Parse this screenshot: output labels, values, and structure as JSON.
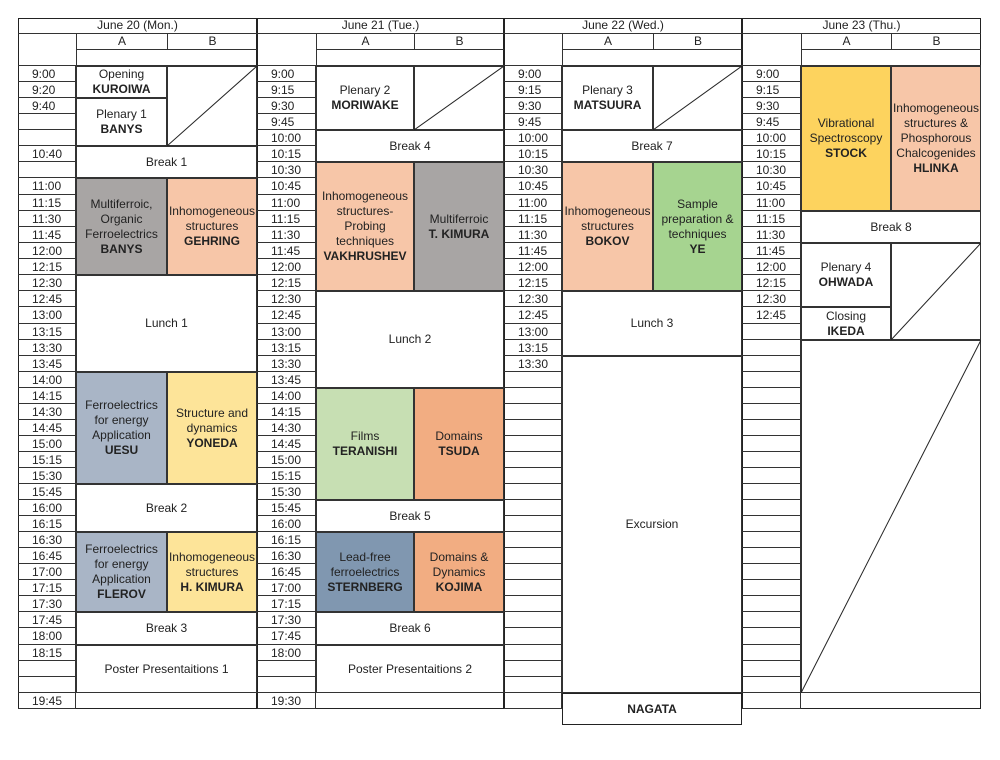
{
  "days": [
    {
      "label": "June 20 (Mon.)",
      "col_a": "A",
      "col_b": "B"
    },
    {
      "label": "June 21 (Tue.)",
      "col_a": "A",
      "col_b": "B"
    },
    {
      "label": "June 22 (Wed.)",
      "col_a": "A",
      "col_b": "B"
    },
    {
      "label": "June 23 (Thu.)",
      "col_a": "A",
      "col_b": "B"
    }
  ],
  "times": {
    "d1": [
      {
        "id": "t0900",
        "text": "9:00"
      },
      {
        "id": "t0920",
        "text": "9:20"
      },
      {
        "id": "t0940",
        "text": "9:40"
      },
      {
        "id": "t1040",
        "text": "10:40"
      },
      {
        "id": "t1100",
        "text": "11:00"
      },
      {
        "id": "t1115",
        "text": "11:15"
      },
      {
        "id": "t1130",
        "text": "11:30"
      },
      {
        "id": "t1145",
        "text": "11:45"
      },
      {
        "id": "t1200",
        "text": "12:00"
      },
      {
        "id": "t1215",
        "text": "12:15"
      },
      {
        "id": "t1230",
        "text": "12:30"
      },
      {
        "id": "t1245",
        "text": "12:45"
      },
      {
        "id": "t1300",
        "text": "13:00"
      },
      {
        "id": "t1315",
        "text": "13:15"
      },
      {
        "id": "t1330",
        "text": "13:30"
      },
      {
        "id": "t1345",
        "text": "13:45"
      },
      {
        "id": "t1400",
        "text": "14:00"
      },
      {
        "id": "t1415",
        "text": "14:15"
      },
      {
        "id": "t1430",
        "text": "14:30"
      },
      {
        "id": "t1445",
        "text": "14:45"
      },
      {
        "id": "t1500",
        "text": "15:00"
      },
      {
        "id": "t1515",
        "text": "15:15"
      },
      {
        "id": "t1530",
        "text": "15:30"
      },
      {
        "id": "t1545",
        "text": "15:45"
      },
      {
        "id": "t1600",
        "text": "16:00"
      },
      {
        "id": "t1615",
        "text": "16:15"
      },
      {
        "id": "t1630",
        "text": "16:30"
      },
      {
        "id": "t1645",
        "text": "16:45"
      },
      {
        "id": "t1700",
        "text": "17:00"
      },
      {
        "id": "t1715",
        "text": "17:15"
      },
      {
        "id": "t1730",
        "text": "17:30"
      },
      {
        "id": "t1745",
        "text": "17:45"
      },
      {
        "id": "t1800",
        "text": "18:00"
      },
      {
        "id": "t1815",
        "text": "18:15"
      },
      {
        "id": "t1945",
        "text": "19:45"
      }
    ],
    "d2": [
      {
        "id": "t0900",
        "text": "9:00"
      },
      {
        "id": "t0915",
        "text": "9:15"
      },
      {
        "id": "t0930",
        "text": "9:30"
      },
      {
        "id": "t0945",
        "text": "9:45"
      },
      {
        "id": "t1000",
        "text": "10:00"
      },
      {
        "id": "t1015",
        "text": "10:15"
      },
      {
        "id": "t1030",
        "text": "10:30"
      },
      {
        "id": "t1045",
        "text": "10:45"
      },
      {
        "id": "t1100",
        "text": "11:00"
      },
      {
        "id": "t1115",
        "text": "11:15"
      },
      {
        "id": "t1130",
        "text": "11:30"
      },
      {
        "id": "t1145",
        "text": "11:45"
      },
      {
        "id": "t1200",
        "text": "12:00"
      },
      {
        "id": "t1215",
        "text": "12:15"
      },
      {
        "id": "t1230",
        "text": "12:30"
      },
      {
        "id": "t1245",
        "text": "12:45"
      },
      {
        "id": "t1300",
        "text": "13:00"
      },
      {
        "id": "t1315",
        "text": "13:15"
      },
      {
        "id": "t1330",
        "text": "13:30"
      },
      {
        "id": "t1345",
        "text": "13:45"
      },
      {
        "id": "t1400",
        "text": "14:00"
      },
      {
        "id": "t1415",
        "text": "14:15"
      },
      {
        "id": "t1430",
        "text": "14:30"
      },
      {
        "id": "t1445",
        "text": "14:45"
      },
      {
        "id": "t1500",
        "text": "15:00"
      },
      {
        "id": "t1515",
        "text": "15:15"
      },
      {
        "id": "t1530",
        "text": "15:30"
      },
      {
        "id": "t1545",
        "text": "15:45"
      },
      {
        "id": "t1600",
        "text": "16:00"
      },
      {
        "id": "t1615",
        "text": "16:15"
      },
      {
        "id": "t1630",
        "text": "16:30"
      },
      {
        "id": "t1645",
        "text": "16:45"
      },
      {
        "id": "t1700",
        "text": "17:00"
      },
      {
        "id": "t1715",
        "text": "17:15"
      },
      {
        "id": "t1730",
        "text": "17:30"
      },
      {
        "id": "t1745",
        "text": "17:45"
      },
      {
        "id": "t1800",
        "text": "18:00"
      },
      {
        "id": "t1930",
        "text": "19:30"
      }
    ],
    "d3": [
      {
        "id": "t0900",
        "text": "9:00"
      },
      {
        "id": "t0915",
        "text": "9:15"
      },
      {
        "id": "t0930",
        "text": "9:30"
      },
      {
        "id": "t0945",
        "text": "9:45"
      },
      {
        "id": "t1000",
        "text": "10:00"
      },
      {
        "id": "t1015",
        "text": "10:15"
      },
      {
        "id": "t1030",
        "text": "10:30"
      },
      {
        "id": "t1045",
        "text": "10:45"
      },
      {
        "id": "t1100",
        "text": "11:00"
      },
      {
        "id": "t1115",
        "text": "11:15"
      },
      {
        "id": "t1130",
        "text": "11:30"
      },
      {
        "id": "t1145",
        "text": "11:45"
      },
      {
        "id": "t1200",
        "text": "12:00"
      },
      {
        "id": "t1215",
        "text": "12:15"
      },
      {
        "id": "t1230",
        "text": "12:30"
      },
      {
        "id": "t1245",
        "text": "12:45"
      },
      {
        "id": "t1300",
        "text": "13:00"
      },
      {
        "id": "t1315",
        "text": "13:15"
      },
      {
        "id": "t1330",
        "text": "13:30"
      }
    ],
    "d4": [
      {
        "id": "t0900",
        "text": "9:00"
      },
      {
        "id": "t0915",
        "text": "9:15"
      },
      {
        "id": "t0930",
        "text": "9:30"
      },
      {
        "id": "t0945",
        "text": "9:45"
      },
      {
        "id": "t1000",
        "text": "10:00"
      },
      {
        "id": "t1015",
        "text": "10:15"
      },
      {
        "id": "t1030",
        "text": "10:30"
      },
      {
        "id": "t1045",
        "text": "10:45"
      },
      {
        "id": "t1100",
        "text": "11:00"
      },
      {
        "id": "t1115",
        "text": "11:15"
      },
      {
        "id": "t1130",
        "text": "11:30"
      },
      {
        "id": "t1145",
        "text": "11:45"
      },
      {
        "id": "t1200",
        "text": "12:00"
      },
      {
        "id": "t1215",
        "text": "12:15"
      },
      {
        "id": "t1230",
        "text": "12:30"
      },
      {
        "id": "t1245",
        "text": "12:45"
      }
    ]
  },
  "sessions": {
    "opening": {
      "title": "Opening",
      "speaker": "KUROIWA"
    },
    "plenary1": {
      "title": "Plenary 1",
      "speaker": "BANYS"
    },
    "break1": {
      "title": "Break 1"
    },
    "s1a": {
      "title": "Multiferroic, Organic Ferroelectrics",
      "speaker": "BANYS"
    },
    "s1b": {
      "title": "Inhomogeneous structures",
      "speaker": "GEHRING"
    },
    "lunch1": {
      "title": "Lunch 1"
    },
    "s2a": {
      "title": "Ferroelectrics for energy Application",
      "speaker": "UESU"
    },
    "s2b": {
      "title": "Structure and dynamics",
      "speaker": "YONEDA"
    },
    "break2": {
      "title": "Break 2"
    },
    "s3a": {
      "title": "Ferroelectrics for energy Application",
      "speaker": "FLEROV"
    },
    "s3b": {
      "title": "Inhomogeneous structures",
      "speaker": "H. KIMURA"
    },
    "break3": {
      "title": "Break 3"
    },
    "poster1": {
      "title": "Poster Presentaitions 1"
    },
    "plenary2": {
      "title": "Plenary 2",
      "speaker": "MORIWAKE"
    },
    "break4": {
      "title": "Break 4"
    },
    "s4a": {
      "title": "Inhomogeneous structures- Probing techniques",
      "speaker": "VAKHRUSHEV"
    },
    "s4b": {
      "title": "Multiferroic",
      "speaker": "T. KIMURA"
    },
    "lunch2": {
      "title": "Lunch 2"
    },
    "s5a": {
      "title": "Films",
      "speaker": "TERANISHI"
    },
    "s5b": {
      "title": "Domains",
      "speaker": "TSUDA"
    },
    "break5": {
      "title": "Break 5"
    },
    "s6a": {
      "title": "Lead-free ferroelectrics",
      "speaker": "STERNBERG"
    },
    "s6b": {
      "title": "Domains & Dynamics",
      "speaker": "KOJIMA"
    },
    "break6": {
      "title": "Break 6"
    },
    "poster2": {
      "title": "Poster Presentaitions 2"
    },
    "plenary3": {
      "title": "Plenary 3",
      "speaker": "MATSUURA"
    },
    "break7": {
      "title": "Break 7"
    },
    "s7a": {
      "title": "Inhomogeneous structures",
      "speaker": "BOKOV"
    },
    "s7b": {
      "title": "Sample preparation & techniques",
      "speaker": "YE"
    },
    "lunch3": {
      "title": "Lunch 3"
    },
    "excursion": {
      "title": "Excursion"
    },
    "s8a": {
      "title": "Vibrational Spectroscopy",
      "speaker": "STOCK"
    },
    "s8b": {
      "title": "Inhomogeneous structures & Phosphorous Chalcogenides",
      "speaker": "HLINKA"
    },
    "break8": {
      "title": "Break 8"
    },
    "plenary4": {
      "title": "Plenary 4",
      "speaker": "OHWADA"
    },
    "closing": {
      "title": "Closing",
      "speaker": "IKEDA"
    },
    "nagata": {
      "title": "NAGATA"
    }
  },
  "colors": {
    "gray": "#a8a5a4",
    "salmon": "#f7c6a8",
    "blue_gray": "#a9b5c6",
    "yellow": "#fde499",
    "green": "#c7dfb3",
    "orange": "#f2ad82",
    "slate": "#8097b0",
    "gold": "#fdd35e",
    "lime": "#a6d490"
  }
}
